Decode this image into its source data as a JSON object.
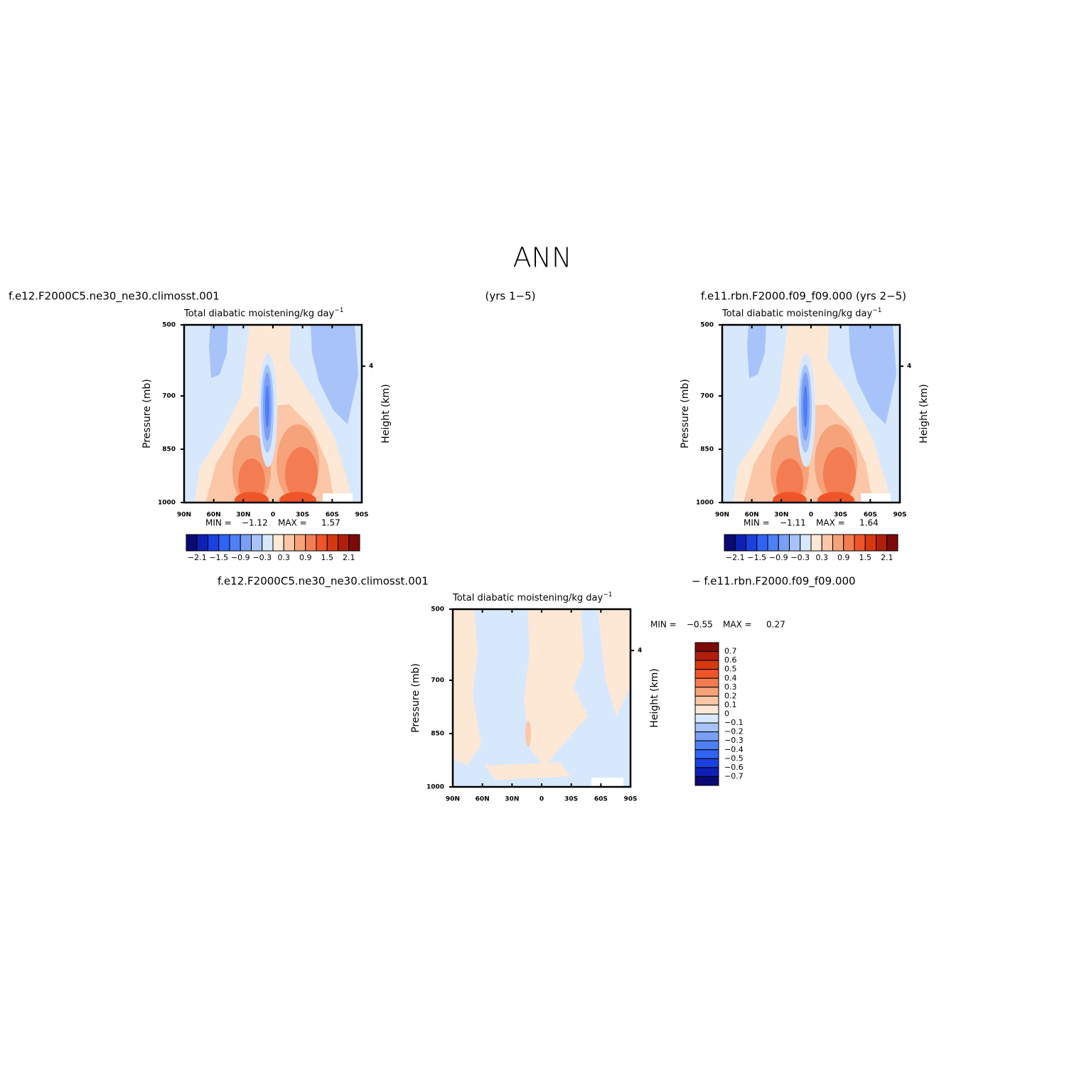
{
  "title": "ANN",
  "chart_data": [
    {
      "type": "contour",
      "left_string": "f.e12.F2000C5.ne30_ne30.climosst.001",
      "center_string": "(yrs 1−5)",
      "title": "Total diabatic moistening/kg day",
      "title_superscript": "−1",
      "ylabel": "Pressure (mb)",
      "y2label": "Height (km)",
      "xlim": [
        90,
        -90
      ],
      "xticks": [
        {
          "value": 90,
          "label": "90N"
        },
        {
          "value": 60,
          "label": "60N"
        },
        {
          "value": 30,
          "label": "30N"
        },
        0,
        {
          "value": -30,
          "label": "30S"
        },
        {
          "value": -60,
          "label": "60S"
        },
        {
          "value": -90,
          "label": "90S"
        }
      ],
      "ylim": [
        1000,
        500
      ],
      "yticks": [
        500,
        700,
        850,
        1000
      ],
      "y2ticks": [
        4
      ],
      "stats": [
        {
          "name": "MIN =",
          "value": -1.12,
          "label": "−1.12"
        },
        {
          "name": "MAX =",
          "value": 1.57
        }
      ],
      "colorbar": {
        "orientation": "horizontal",
        "colors": [
          "#0a0a73",
          "#0f21b4",
          "#1c40e0",
          "#2f63f5",
          "#4f7ff6",
          "#7a9ff7",
          "#a8c3f9",
          "#d7e8fc",
          "#fde8d6",
          "#fbc7a8",
          "#f6a27a",
          "#f47c52",
          "#ef5528",
          "#d8380f",
          "#b01f0a",
          "#7d0a07"
        ],
        "ticks": [
          {
            "value": -2.1,
            "label": "−2.1"
          },
          {
            "value": -1.5,
            "label": "−1.5"
          },
          {
            "value": -0.9,
            "label": "−0.9"
          },
          {
            "value": -0.3,
            "label": "−0.3"
          },
          0.3,
          0.9,
          1.5,
          2.1
        ]
      }
    },
    {
      "type": "contour",
      "left_string": "f.e11.rbn.F2000.f09_f09.000 (yrs 2−5)",
      "title": "Total diabatic moistening/kg day",
      "title_superscript": "−1",
      "ylabel": "Pressure (mb)",
      "y2label": "Height (km)",
      "xlim": [
        90,
        -90
      ],
      "xticks": [
        {
          "value": 90,
          "label": "90N"
        },
        {
          "value": 60,
          "label": "60N"
        },
        {
          "value": 30,
          "label": "30N"
        },
        0,
        {
          "value": -30,
          "label": "30S"
        },
        {
          "value": -60,
          "label": "60S"
        },
        {
          "value": -90,
          "label": "90S"
        }
      ],
      "ylim": [
        1000,
        500
      ],
      "yticks": [
        500,
        700,
        850,
        1000
      ],
      "y2ticks": [
        4
      ],
      "stats": [
        {
          "name": "MIN =",
          "value": -1.11,
          "label": "−1.11"
        },
        {
          "name": "MAX =",
          "value": 1.64
        }
      ],
      "colorbar": {
        "orientation": "horizontal",
        "colors": [
          "#0a0a73",
          "#0f21b4",
          "#1c40e0",
          "#2f63f5",
          "#4f7ff6",
          "#7a9ff7",
          "#a8c3f9",
          "#d7e8fc",
          "#fde8d6",
          "#fbc7a8",
          "#f6a27a",
          "#f47c52",
          "#ef5528",
          "#d8380f",
          "#b01f0a",
          "#7d0a07"
        ],
        "ticks": [
          {
            "value": -2.1,
            "label": "−2.1"
          },
          {
            "value": -1.5,
            "label": "−1.5"
          },
          {
            "value": -0.9,
            "label": "−0.9"
          },
          {
            "value": -0.3,
            "label": "−0.3"
          },
          0.3,
          0.9,
          1.5,
          2.1
        ]
      }
    },
    {
      "type": "contour",
      "left_string": "f.e12.F2000C5.ne30_ne30.climosst.001",
      "right_string": "− f.e11.rbn.F2000.f09_f09.000",
      "title": "Total diabatic moistening/kg day",
      "title_superscript": "−1",
      "ylabel": "Pressure (mb)",
      "y2label": "Height (km)",
      "xlim": [
        90,
        -90
      ],
      "xticks": [
        {
          "value": 90,
          "label": "90N"
        },
        {
          "value": 60,
          "label": "60N"
        },
        {
          "value": 30,
          "label": "30N"
        },
        0,
        {
          "value": -30,
          "label": "30S"
        },
        {
          "value": -60,
          "label": "60S"
        },
        {
          "value": -90,
          "label": "90S"
        }
      ],
      "ylim": [
        1000,
        500
      ],
      "yticks": [
        500,
        700,
        850,
        1000
      ],
      "y2ticks": [
        4
      ],
      "stats": [
        {
          "name": "MIN =",
          "value": -0.55,
          "label": "−0.55"
        },
        {
          "name": "MAX =",
          "value": 0.27
        }
      ],
      "colorbar": {
        "orientation": "vertical",
        "colors": [
          "#7d0a07",
          "#b01f0a",
          "#d8380f",
          "#ef5528",
          "#f47c52",
          "#f6a27a",
          "#fbc7a8",
          "#fde8d6",
          "#d7e8fc",
          "#a8c3f9",
          "#7a9ff7",
          "#4f7ff6",
          "#2f63f5",
          "#1c40e0",
          "#0f21b4",
          "#0a0a73"
        ],
        "ticks": [
          0.7,
          0.6,
          0.5,
          0.4,
          0.3,
          0.2,
          0.1,
          0,
          {
            "value": -0.1,
            "label": "−0.1"
          },
          {
            "value": -0.2,
            "label": "−0.2"
          },
          {
            "value": -0.3,
            "label": "−0.3"
          },
          {
            "value": -0.4,
            "label": "−0.4"
          },
          {
            "value": -0.5,
            "label": "−0.5"
          },
          {
            "value": -0.6,
            "label": "−0.6"
          },
          {
            "value": -0.7,
            "label": "−0.7"
          }
        ]
      }
    }
  ]
}
